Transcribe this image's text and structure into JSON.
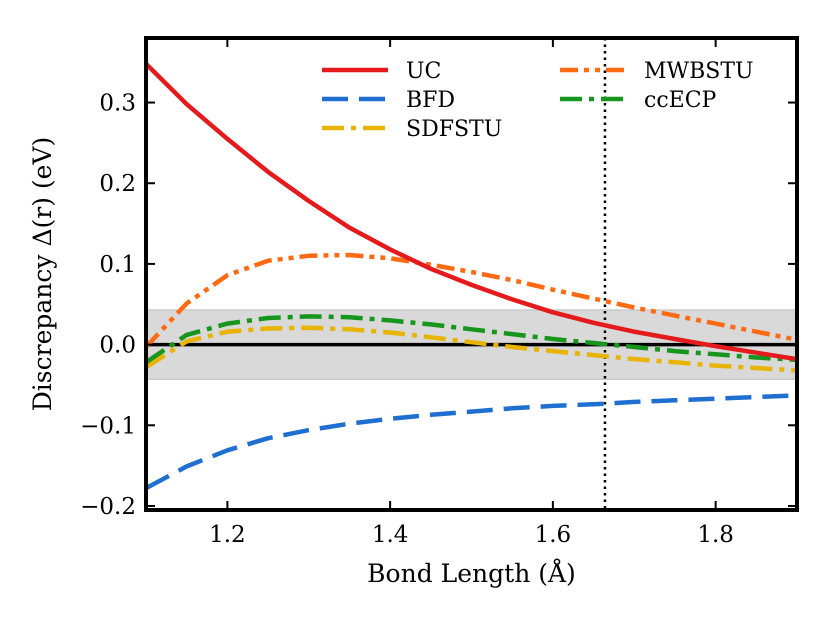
{
  "chart_data": {
    "type": "line",
    "xlabel": "Bond Length (Å)",
    "ylabel": "Discrepancy Δ(r) (eV)",
    "xlim": [
      1.1,
      1.9
    ],
    "ylim": [
      -0.205,
      0.38
    ],
    "xticks": [
      1.2,
      1.4,
      1.6,
      1.8
    ],
    "xtick_labels": [
      "1.2",
      "1.4",
      "1.6",
      "1.8"
    ],
    "yticks": [
      -0.2,
      -0.1,
      0.0,
      0.1,
      0.2,
      0.3
    ],
    "ytick_labels": [
      "−0.2",
      "−0.1",
      "0.0",
      "0.1",
      "0.2",
      "0.3"
    ],
    "shaded_band": [
      -0.043,
      0.043
    ],
    "shaded_color": "#d9d9d9",
    "zero_line": 0.0,
    "vertical_line": 1.664,
    "legend_position": "top-right",
    "x": [
      1.1,
      1.15,
      1.2,
      1.25,
      1.3,
      1.35,
      1.4,
      1.45,
      1.5,
      1.55,
      1.6,
      1.65,
      1.7,
      1.75,
      1.8,
      1.85,
      1.9
    ],
    "series": [
      {
        "name": "UC",
        "color": "#e41a1c",
        "dash": "solid",
        "values": [
          0.348,
          0.298,
          0.255,
          0.214,
          0.178,
          0.145,
          0.118,
          0.094,
          0.074,
          0.056,
          0.04,
          0.027,
          0.016,
          0.007,
          -0.002,
          -0.01,
          -0.018
        ]
      },
      {
        "name": "BFD",
        "color": "#1f6fd0",
        "dash": "longdash",
        "values": [
          -0.178,
          -0.151,
          -0.131,
          -0.116,
          -0.106,
          -0.098,
          -0.092,
          -0.087,
          -0.083,
          -0.079,
          -0.076,
          -0.074,
          -0.071,
          -0.069,
          -0.067,
          -0.065,
          -0.063
        ]
      },
      {
        "name": "SDFSTU",
        "color": "#e8b400",
        "dash": "dashdot",
        "values": [
          -0.028,
          0.004,
          0.016,
          0.02,
          0.021,
          0.019,
          0.015,
          0.009,
          0.003,
          -0.003,
          -0.008,
          -0.013,
          -0.018,
          -0.022,
          -0.026,
          -0.029,
          -0.032
        ]
      },
      {
        "name": "MWBSTU",
        "color": "#ff6a13",
        "dash": "dashdotdot",
        "values": [
          -0.003,
          0.051,
          0.086,
          0.104,
          0.11,
          0.111,
          0.107,
          0.099,
          0.09,
          0.08,
          0.068,
          0.057,
          0.046,
          0.036,
          0.026,
          0.016,
          0.006
        ]
      },
      {
        "name": "ccECP",
        "color": "#17961e",
        "dash": "dashdot",
        "values": [
          -0.022,
          0.012,
          0.026,
          0.033,
          0.035,
          0.034,
          0.03,
          0.025,
          0.019,
          0.013,
          0.007,
          0.002,
          -0.003,
          -0.008,
          -0.012,
          -0.016,
          -0.019
        ]
      }
    ]
  }
}
